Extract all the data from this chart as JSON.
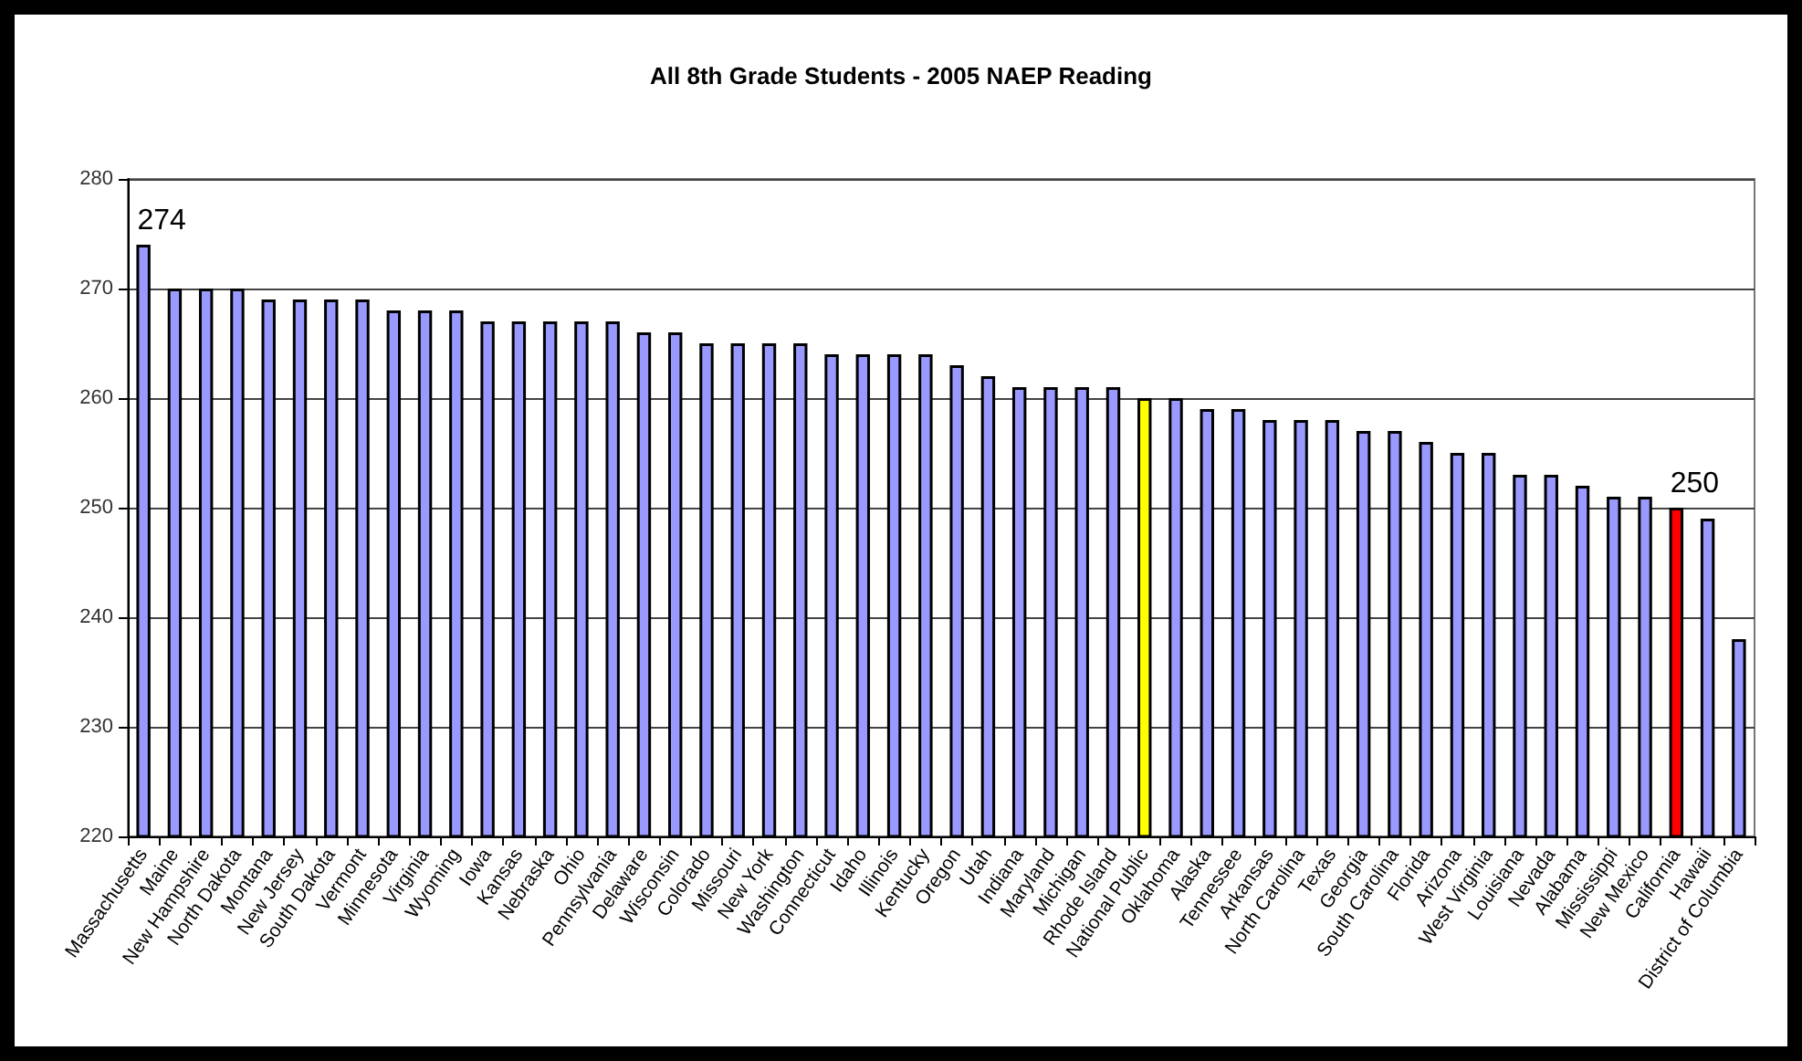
{
  "chart_data": {
    "type": "bar",
    "title": "All 8th Grade Students - 2005 NAEP Reading",
    "categories": [
      "Massachusetts",
      "Maine",
      "New Hampshire",
      "North Dakota",
      "Montana",
      "New Jersey",
      "South Dakota",
      "Vermont",
      "Minnesota",
      "Virginia",
      "Wyoming",
      "Iowa",
      "Kansas",
      "Nebraska",
      "Ohio",
      "Pennsylvania",
      "Delaware",
      "Wisconsin",
      "Colorado",
      "Missouri",
      "New York",
      "Washington",
      "Connecticut",
      "Idaho",
      "Illinois",
      "Kentucky",
      "Oregon",
      "Utah",
      "Indiana",
      "Maryland",
      "Michigan",
      "Rhode Island",
      "National Public",
      "Oklahoma",
      "Alaska",
      "Tennessee",
      "Arkansas",
      "North Carolina",
      "Texas",
      "Georgia",
      "South Carolina",
      "Florida",
      "Arizona",
      "West Virginia",
      "Louisiana",
      "Nevada",
      "Alabama",
      "Mississippi",
      "New Mexico",
      "California",
      "Hawaii",
      "District of Columbia"
    ],
    "values": [
      274,
      270,
      270,
      270,
      269,
      269,
      269,
      269,
      268,
      268,
      268,
      267,
      267,
      267,
      267,
      267,
      266,
      266,
      265,
      265,
      265,
      265,
      264,
      264,
      264,
      264,
      263,
      262,
      261,
      261,
      261,
      261,
      260,
      260,
      259,
      259,
      258,
      258,
      258,
      257,
      257,
      256,
      255,
      255,
      253,
      253,
      252,
      251,
      251,
      250,
      249,
      238
    ],
    "value_labels": [
      "274",
      null,
      null,
      null,
      null,
      null,
      null,
      null,
      null,
      null,
      null,
      null,
      null,
      null,
      null,
      null,
      null,
      null,
      null,
      null,
      null,
      null,
      null,
      null,
      null,
      null,
      null,
      null,
      null,
      null,
      null,
      null,
      null,
      null,
      null,
      null,
      null,
      null,
      null,
      null,
      null,
      null,
      null,
      null,
      null,
      null,
      null,
      null,
      null,
      "250",
      null,
      null
    ],
    "colors": [
      "#9999ff",
      "#9999ff",
      "#9999ff",
      "#9999ff",
      "#9999ff",
      "#9999ff",
      "#9999ff",
      "#9999ff",
      "#9999ff",
      "#9999ff",
      "#9999ff",
      "#9999ff",
      "#9999ff",
      "#9999ff",
      "#9999ff",
      "#9999ff",
      "#9999ff",
      "#9999ff",
      "#9999ff",
      "#9999ff",
      "#9999ff",
      "#9999ff",
      "#9999ff",
      "#9999ff",
      "#9999ff",
      "#9999ff",
      "#9999ff",
      "#9999ff",
      "#9999ff",
      "#9999ff",
      "#9999ff",
      "#9999ff",
      "#ffff00",
      "#9999ff",
      "#9999ff",
      "#9999ff",
      "#9999ff",
      "#9999ff",
      "#9999ff",
      "#9999ff",
      "#9999ff",
      "#9999ff",
      "#9999ff",
      "#9999ff",
      "#9999ff",
      "#9999ff",
      "#9999ff",
      "#9999ff",
      "#9999ff",
      "#ff0000",
      "#9999ff",
      "#9999ff"
    ],
    "ylim": [
      220,
      280
    ],
    "yticks": [
      220,
      230,
      240,
      250,
      260,
      270,
      280
    ],
    "grid": "y"
  }
}
